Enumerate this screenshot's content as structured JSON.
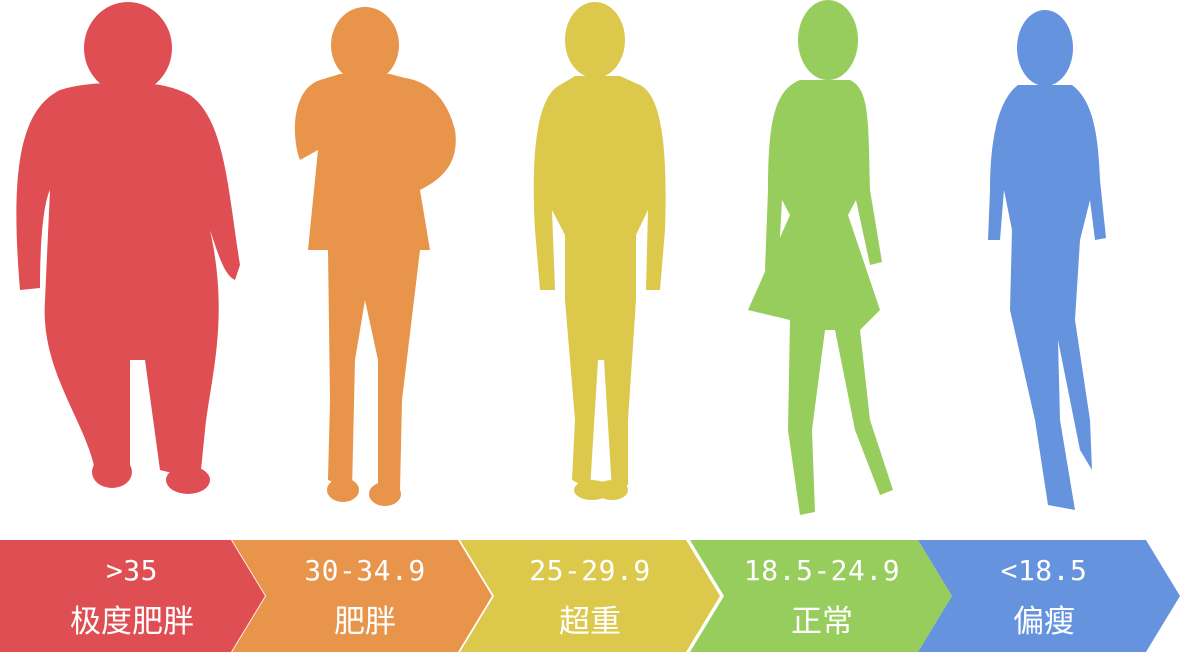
{
  "categories": [
    {
      "range": ">35",
      "name": "极度肥胖",
      "color": "#df4e52",
      "figure": "very-obese"
    },
    {
      "range": "30-34.9",
      "name": "肥胖",
      "color": "#e8944a",
      "figure": "obese"
    },
    {
      "range": "25-29.9",
      "name": "超重",
      "color": "#dcc94c",
      "figure": "overweight"
    },
    {
      "range": "18.5-24.9",
      "name": "正常",
      "color": "#97cd5c",
      "figure": "normal"
    },
    {
      "range": "<18.5",
      "name": "偏瘦",
      "color": "#6593de",
      "figure": "thin"
    }
  ]
}
